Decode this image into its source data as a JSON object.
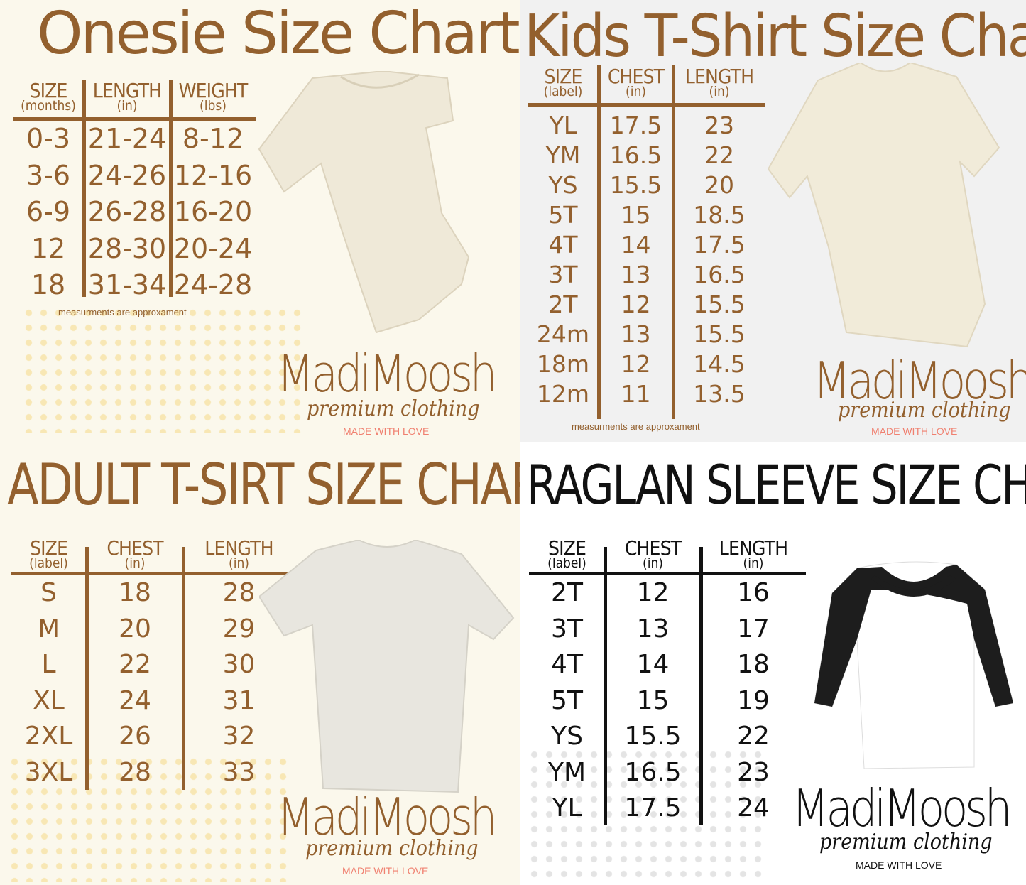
{
  "colors": {
    "brown": "#93602e",
    "black": "#111111",
    "love_pink": "#f08070",
    "onesie_bg": "#fbf8ec",
    "kids_bg": "#f1f1f1",
    "raglan_bg": "#ffffff",
    "dots_yellow": "#f7e3a6",
    "dots_gray": "#dddddd"
  },
  "brand": {
    "name": "MadiMoosh",
    "tagline": "premium clothing",
    "made_with": "MADE WITH LOVE"
  },
  "onesie": {
    "title": "Onesie Size Chart",
    "headers": [
      {
        "label": "SIZE",
        "unit": "(months)"
      },
      {
        "label": "LENGTH",
        "unit": "(in)"
      },
      {
        "label": "WEIGHT",
        "unit": "(lbs)"
      }
    ],
    "rows": [
      [
        "0-3",
        "21-24",
        "8-12"
      ],
      [
        "3-6",
        "24-26",
        "12-16"
      ],
      [
        "6-9",
        "26-28",
        "16-20"
      ],
      [
        "12",
        "28-30",
        "20-24"
      ],
      [
        "18",
        "31-34",
        "24-28"
      ]
    ],
    "note": "measurments are approxament",
    "image": "onesie-illustration"
  },
  "kids": {
    "title": "Kids T-Shirt Size Chart",
    "headers": [
      {
        "label": "SIZE",
        "unit": "(label)"
      },
      {
        "label": "CHEST",
        "unit": "(in)"
      },
      {
        "label": "LENGTH",
        "unit": "(in)"
      }
    ],
    "rows": [
      [
        "YL",
        "17.5",
        "23"
      ],
      [
        "YM",
        "16.5",
        "22"
      ],
      [
        "YS",
        "15.5",
        "20"
      ],
      [
        "5T",
        "15",
        "18.5"
      ],
      [
        "4T",
        "14",
        "17.5"
      ],
      [
        "3T",
        "13",
        "16.5"
      ],
      [
        "2T",
        "12",
        "15.5"
      ],
      [
        "24m",
        "13",
        "15.5"
      ],
      [
        "18m",
        "12",
        "14.5"
      ],
      [
        "12m",
        "11",
        "13.5"
      ]
    ],
    "note": "measurments are approxament",
    "image": "tshirt-natural-illustration"
  },
  "adult": {
    "title": "ADULT T-SIRT SIZE CHART",
    "headers": [
      {
        "label": "SIZE",
        "unit": "(label)"
      },
      {
        "label": "CHEST",
        "unit": "(in)"
      },
      {
        "label": "LENGTH",
        "unit": "(in)"
      }
    ],
    "rows": [
      [
        "S",
        "18",
        "28"
      ],
      [
        "M",
        "20",
        "29"
      ],
      [
        "L",
        "22",
        "30"
      ],
      [
        "XL",
        "24",
        "31"
      ],
      [
        "2XL",
        "26",
        "32"
      ],
      [
        "3XL",
        "28",
        "33"
      ]
    ],
    "image": "tshirt-gray-illustration"
  },
  "raglan": {
    "title": "RAGLAN SLEEVE SIZE CHART",
    "headers": [
      {
        "label": "SIZE",
        "unit": "(label)"
      },
      {
        "label": "CHEST",
        "unit": "(in)"
      },
      {
        "label": "LENGTH",
        "unit": "(in)"
      }
    ],
    "rows": [
      [
        "2T",
        "12",
        "16"
      ],
      [
        "3T",
        "13",
        "17"
      ],
      [
        "4T",
        "14",
        "18"
      ],
      [
        "5T",
        "15",
        "19"
      ],
      [
        "YS",
        "15.5",
        "22"
      ],
      [
        "YM",
        "16.5",
        "23"
      ],
      [
        "YL",
        "17.5",
        "24"
      ]
    ],
    "image": "raglan-illustration"
  }
}
